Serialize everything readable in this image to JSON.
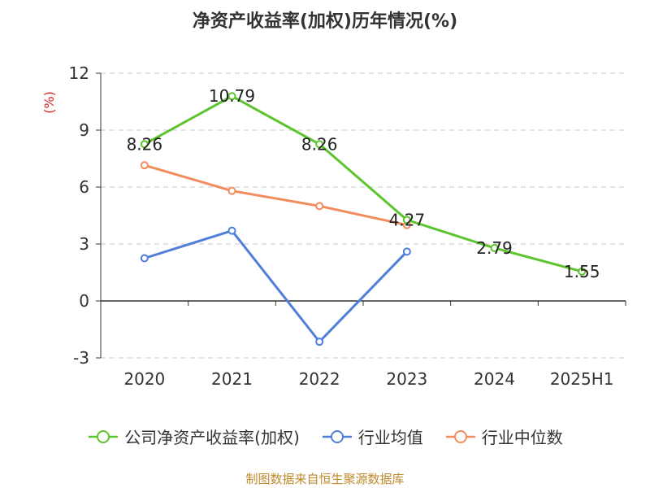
{
  "title": "净资产收益率(加权)历年情况(%)",
  "source": "制图数据来自恒生聚源数据库",
  "chart_data": {
    "type": "line",
    "title": "净资产收益率(加权)历年情况(%)",
    "ylabel": "(%)",
    "ylim": [
      -3,
      12
    ],
    "yticks": [
      -3,
      0,
      3,
      6,
      9,
      12
    ],
    "categories": [
      "2020",
      "2021",
      "2022",
      "2023",
      "2024",
      "2025H1"
    ],
    "grid": true,
    "legend_position": "bottom",
    "series": [
      {
        "name": "公司净资产收益率(加权)",
        "color": "#5cc42c",
        "values": [
          8.26,
          10.79,
          8.26,
          4.27,
          2.79,
          1.55
        ],
        "labels": [
          "8.26",
          "10.79",
          "8.26",
          "4.27",
          "2.79",
          "1.55"
        ]
      },
      {
        "name": "行业均值",
        "color": "#4f7fd9",
        "values": [
          2.25,
          3.7,
          -2.15,
          2.6,
          null,
          null
        ]
      },
      {
        "name": "行业中位数",
        "color": "#f28c5c",
        "values": [
          7.15,
          5.8,
          5.0,
          4.0,
          null,
          null
        ]
      }
    ]
  }
}
